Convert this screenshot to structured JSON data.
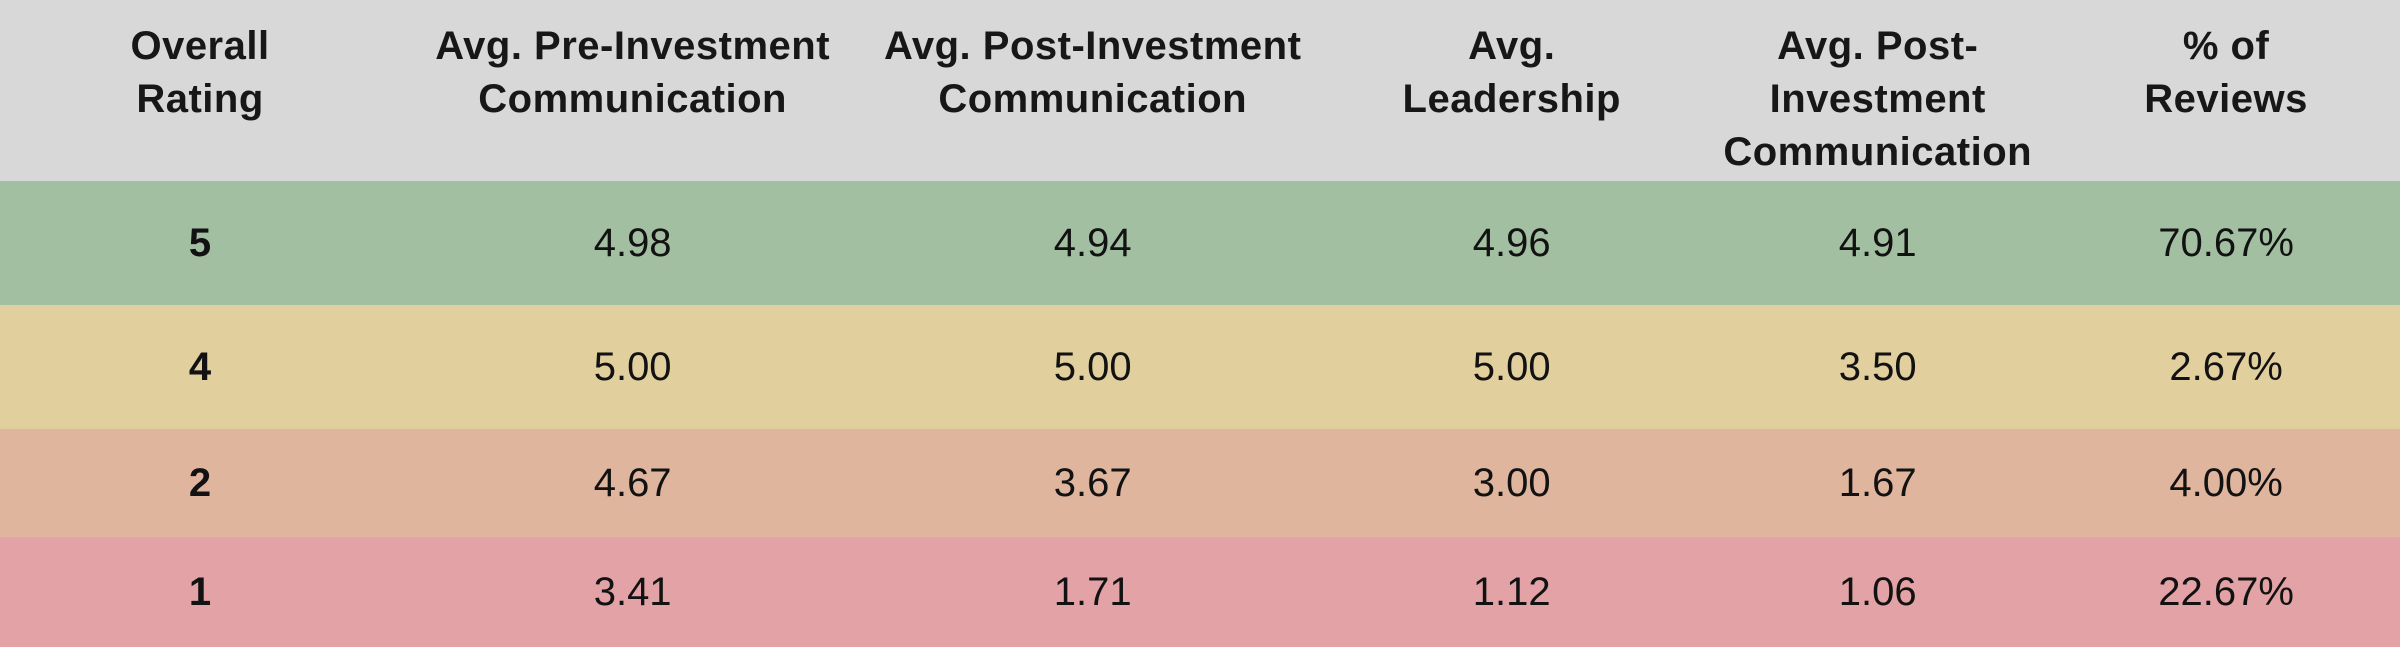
{
  "colors": {
    "header_bg": "#d8d8d8",
    "header_text": "#171717",
    "cell_text": "#121212",
    "row_rating_5_bg": "#a3bfa1",
    "row_rating_4_bg": "#e2cf9e",
    "row_rating_2_bg": "#e0b59e",
    "row_rating_1_bg": "#e2a2a6"
  },
  "table": {
    "headers": [
      {
        "line1": "Overall",
        "line2": "Rating"
      },
      {
        "line1": "Avg. Pre-Investment",
        "line2": "Communication"
      },
      {
        "line1": "Avg. Post-Investment",
        "line2": "Communication"
      },
      {
        "line1": "Avg.",
        "line2": "Leadership"
      },
      {
        "line1": "Avg. Post-Investment",
        "line2": "Communication"
      },
      {
        "line1": "% of",
        "line2": "Reviews"
      }
    ],
    "rows": [
      {
        "bg": "#a3bfa1",
        "cells": [
          "5",
          "4.98",
          "4.94",
          "4.96",
          "4.91",
          "70.67%"
        ]
      },
      {
        "bg": "#e2cf9e",
        "cells": [
          "4",
          "5.00",
          "5.00",
          "5.00",
          "3.50",
          "2.67%"
        ]
      },
      {
        "bg": "#e0b59e",
        "cells": [
          "2",
          "4.67",
          "3.67",
          "3.00",
          "1.67",
          "4.00%"
        ]
      },
      {
        "bg": "#e2a2a6",
        "cells": [
          "1",
          "3.41",
          "1.71",
          "1.12",
          "1.06",
          "22.67%"
        ]
      }
    ]
  },
  "chart_data": {
    "type": "table",
    "title": "",
    "columns": [
      "Overall Rating",
      "Avg. Pre-Investment Communication",
      "Avg. Post-Investment Communication",
      "Avg. Leadership",
      "Avg. Post-Investment Communication",
      "% of Reviews"
    ],
    "rows": [
      {
        "overall_rating": 5,
        "avg_pre_investment_communication": 4.98,
        "avg_post_investment_communication": 4.94,
        "avg_leadership": 4.96,
        "avg_post_investment_communication_2": 4.91,
        "pct_of_reviews": "70.67%"
      },
      {
        "overall_rating": 4,
        "avg_pre_investment_communication": 5.0,
        "avg_post_investment_communication": 5.0,
        "avg_leadership": 5.0,
        "avg_post_investment_communication_2": 3.5,
        "pct_of_reviews": "2.67%"
      },
      {
        "overall_rating": 2,
        "avg_pre_investment_communication": 4.67,
        "avg_post_investment_communication": 3.67,
        "avg_leadership": 3.0,
        "avg_post_investment_communication_2": 1.67,
        "pct_of_reviews": "4.00%"
      },
      {
        "overall_rating": 1,
        "avg_pre_investment_communication": 3.41,
        "avg_post_investment_communication": 1.71,
        "avg_leadership": 1.12,
        "avg_post_investment_communication_2": 1.06,
        "pct_of_reviews": "22.67%"
      }
    ],
    "row_color_semantics": {
      "5": "green (best)",
      "4": "tan",
      "2": "salmon",
      "1": "red/pink (worst)"
    },
    "legend_position": "none",
    "grid": false
  }
}
